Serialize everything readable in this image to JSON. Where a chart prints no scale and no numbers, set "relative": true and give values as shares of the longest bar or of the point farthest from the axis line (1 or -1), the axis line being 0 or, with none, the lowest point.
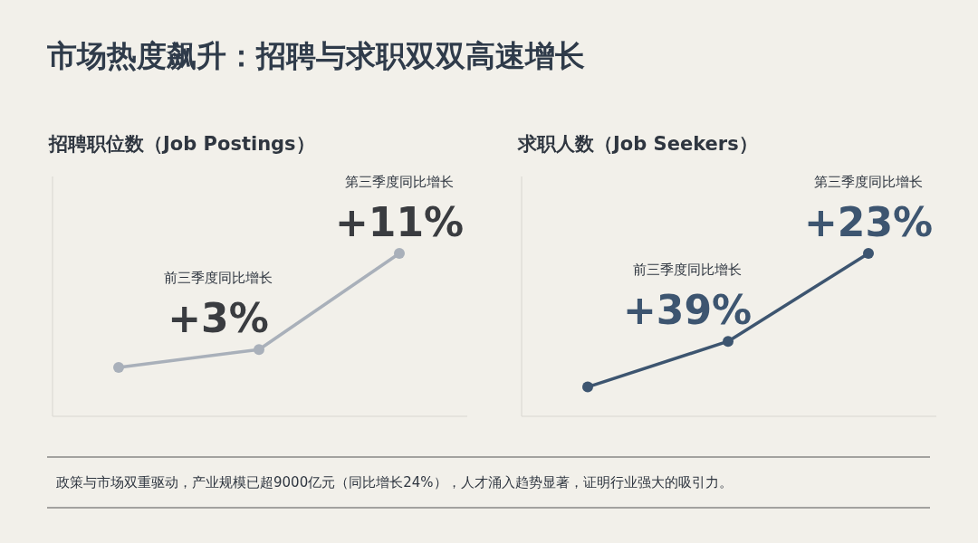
{
  "chart_data": [
    {
      "type": "other",
      "title": "市场热度飙升：招聘与求职双双高速增长",
      "annotations": [
        "政策与市场双重驱动，产业规模已超9000亿元（同比增长24%），人才涌入趋势显著，证明行业强大的吸引力。"
      ]
    },
    {
      "type": "line",
      "title": "招聘职位数（Job Postings）",
      "relative": true,
      "categories": [
        null,
        null,
        null
      ],
      "marker": "circle",
      "series": [
        {
          "color": "#a9b0ba",
          "values": [
            0.3,
            0.41,
            1
          ]
        }
      ],
      "annotations": [
        "前三季度同比增长",
        "+3%",
        "第三季度同比增长",
        "+11%"
      ]
    },
    {
      "type": "line",
      "title": "求职人数（Job Seekers）",
      "relative": true,
      "categories": [
        null,
        null,
        null
      ],
      "marker": "circle",
      "series": [
        {
          "color": "#3d5570",
          "values": [
            0.18,
            0.46,
            1
          ]
        }
      ],
      "annotations": [
        "前三季度同比增长",
        "+39%",
        "第三季度同比增长",
        "+23%"
      ]
    }
  ]
}
